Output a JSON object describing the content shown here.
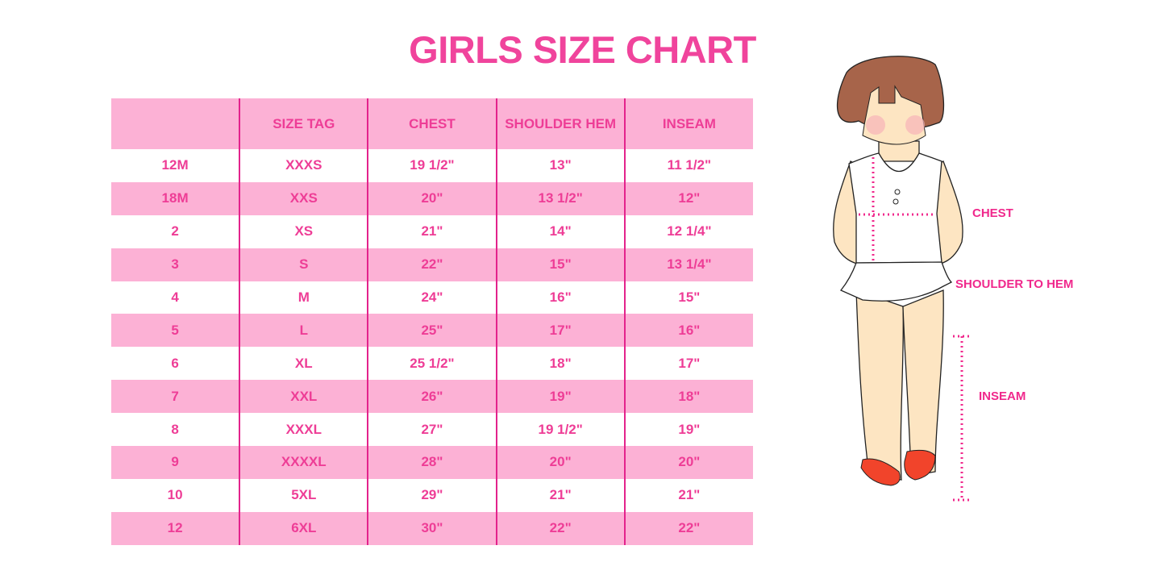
{
  "title": "GIRLS SIZE CHART",
  "table": {
    "headers": [
      "",
      "SIZE TAG",
      "CHEST",
      "SHOULDER HEM",
      "INSEAM"
    ],
    "rows": [
      [
        "12M",
        "XXXS",
        "19 1/2\"",
        "13\"",
        "11 1/2\""
      ],
      [
        "18M",
        "XXS",
        "20\"",
        "13 1/2\"",
        "12\""
      ],
      [
        "2",
        "XS",
        "21\"",
        "14\"",
        "12 1/4\""
      ],
      [
        "3",
        "S",
        "22\"",
        "15\"",
        "13 1/4\""
      ],
      [
        "4",
        "M",
        "24\"",
        "16\"",
        "15\""
      ],
      [
        "5",
        "L",
        "25\"",
        "17\"",
        "16\""
      ],
      [
        "6",
        "XL",
        "25 1/2\"",
        "18\"",
        "17\""
      ],
      [
        "7",
        "XXL",
        "26\"",
        "19\"",
        "18\""
      ],
      [
        "8",
        "XXXL",
        "27\"",
        "19 1/2\"",
        "19\""
      ],
      [
        "9",
        "XXXXL",
        "28\"",
        "20\"",
        "20\""
      ],
      [
        "10",
        "5XL",
        "29\"",
        "21\"",
        "21\""
      ],
      [
        "12",
        "6XL",
        "30\"",
        "22\"",
        "22\""
      ]
    ]
  },
  "diagram": {
    "labels": {
      "chest": "CHEST",
      "shoulder": "SHOULDER TO HEM",
      "inseam": "INSEAM"
    }
  },
  "colors": {
    "accent": "#f0449c",
    "row_pink": "#fcb1d5",
    "divider": "#e3238c"
  }
}
